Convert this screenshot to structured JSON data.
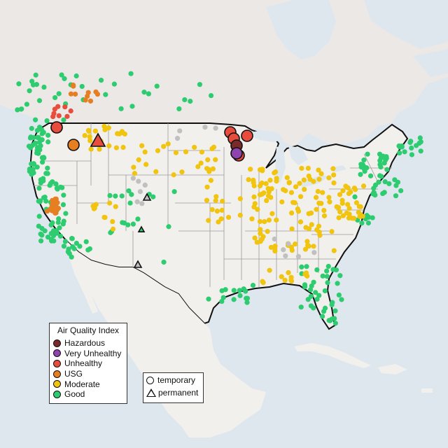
{
  "colors": {
    "water": "#dfe7ee",
    "land": "#f2f0ec",
    "land_canada": "#ece8e6",
    "state_border": "#9a9a9a",
    "country_border": "#111111",
    "Hazardous": "#7b2a2a",
    "Very Unhealthy": "#8e44ad",
    "Unhealthy": "#e74c3c",
    "USG": "#e67e22",
    "Moderate": "#f1c40f",
    "Good": "#2ecc71",
    "NoData": "#c0c0c0"
  },
  "legend_aqi": {
    "title": "Air Quality Index",
    "items": [
      {
        "label": "Hazardous",
        "category": "Hazardous"
      },
      {
        "label": "Very Unhealthy",
        "category": "Very Unhealthy"
      },
      {
        "label": "Unhealthy",
        "category": "Unhealthy"
      },
      {
        "label": "USG",
        "category": "USG"
      },
      {
        "label": "Moderate",
        "category": "Moderate"
      },
      {
        "label": "Good",
        "category": "Good"
      }
    ]
  },
  "legend_type": {
    "items": [
      {
        "label": "temporary",
        "shape": "circle"
      },
      {
        "label": "permanent",
        "shape": "triangle"
      }
    ]
  }
}
